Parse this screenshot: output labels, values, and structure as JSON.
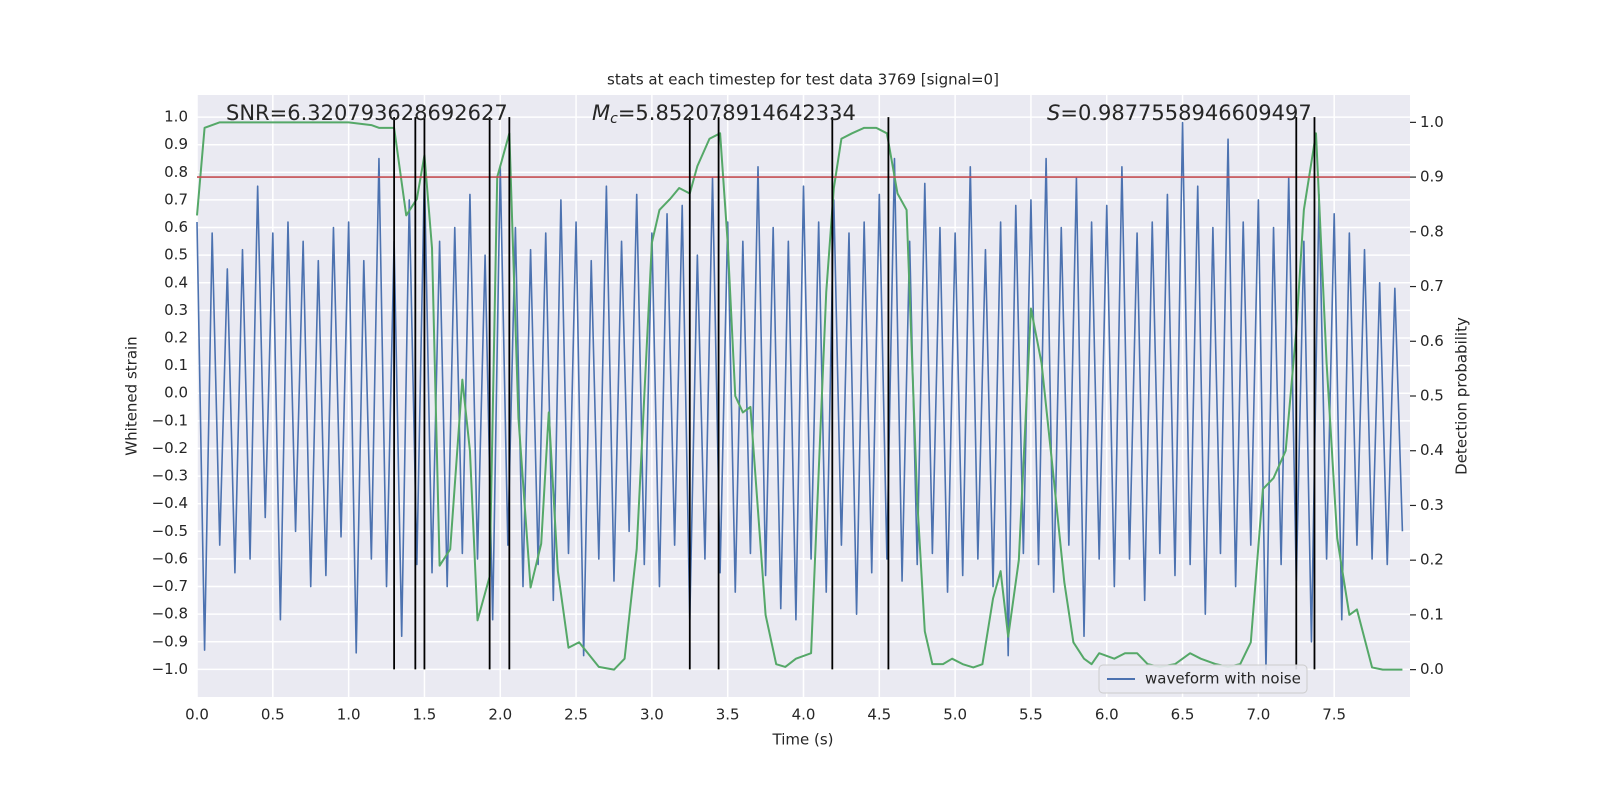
{
  "chart_data": {
    "type": "line",
    "title": "stats at each timestep for test data 3769 [signal=0]",
    "xlabel": "Time (s)",
    "ylabel": "Whitened strain",
    "y2label": "Detection probability",
    "annotations": [
      {
        "text": "SNR=6.320793628692627"
      },
      {
        "symbol": "M",
        "subscript": "c",
        "text": "=5.852078914642334"
      },
      {
        "symbol": "S",
        "text": "=0.9877558946609497"
      }
    ],
    "xlim": [
      0,
      8.0
    ],
    "ylim": [
      -1.1,
      1.08
    ],
    "y2lim": [
      -0.05,
      1.05
    ],
    "xticks": [
      {
        "value": 0,
        "label": "0.0"
      },
      0.5,
      {
        "value": 1,
        "label": "1.0"
      },
      1.5,
      {
        "value": 2,
        "label": "2.0"
      },
      2.5,
      {
        "value": 3,
        "label": "3.0"
      },
      3.5,
      {
        "value": 4,
        "label": "4.0"
      },
      4.5,
      {
        "value": 5,
        "label": "5.0"
      },
      5.5,
      {
        "value": 6,
        "label": "6.0"
      },
      6.5,
      {
        "value": 7,
        "label": "7.0"
      },
      7.5
    ],
    "yticks": [
      {
        "value": -1,
        "label": "−1.0"
      },
      {
        "value": -0.9,
        "label": "−0.9"
      },
      {
        "value": -0.8,
        "label": "−0.8"
      },
      {
        "value": -0.7,
        "label": "−0.7"
      },
      {
        "value": -0.6,
        "label": "−0.6"
      },
      {
        "value": -0.5,
        "label": "−0.5"
      },
      {
        "value": -0.4,
        "label": "−0.4"
      },
      {
        "value": -0.3,
        "label": "−0.3"
      },
      {
        "value": -0.2,
        "label": "−0.2"
      },
      {
        "value": -0.1,
        "label": "−0.1"
      },
      {
        "value": 0,
        "label": "0.0"
      },
      0.1,
      0.2,
      0.3,
      0.4,
      0.5,
      0.6,
      0.7,
      0.8,
      0.9,
      {
        "value": 1,
        "label": "1.0"
      }
    ],
    "y2ticks": [
      {
        "value": 0,
        "label": "0.0"
      },
      0.1,
      0.2,
      0.3,
      0.4,
      0.5,
      0.6,
      0.7,
      0.8,
      0.9,
      {
        "value": 1,
        "label": "1.0"
      }
    ],
    "grid": true,
    "legend": "lower right",
    "series": [
      {
        "name": "waveform with noise",
        "color": "#4c72b0",
        "x": [
          0,
          0.05,
          0.1,
          0.15,
          0.2,
          0.25,
          0.3,
          0.35,
          0.4,
          0.45,
          0.5,
          0.55,
          0.6,
          0.65,
          0.7,
          0.75,
          0.8,
          0.85,
          0.9,
          0.95,
          1,
          1.05,
          1.1,
          1.15,
          1.2,
          1.25,
          1.3,
          1.35,
          1.4,
          1.45,
          1.5,
          1.55,
          1.6,
          1.65,
          1.7,
          1.75,
          1.8,
          1.85,
          1.9,
          1.95,
          2,
          2.05,
          2.1,
          2.15,
          2.2,
          2.25,
          2.3,
          2.35,
          2.4,
          2.45,
          2.5,
          2.55,
          2.6,
          2.65,
          2.7,
          2.75,
          2.8,
          2.85,
          2.9,
          2.95,
          3,
          3.05,
          3.1,
          3.15,
          3.2,
          3.25,
          3.3,
          3.35,
          3.4,
          3.45,
          3.5,
          3.55,
          3.6,
          3.65,
          3.7,
          3.75,
          3.8,
          3.85,
          3.9,
          3.95,
          4,
          4.05,
          4.1,
          4.15,
          4.2,
          4.25,
          4.3,
          4.35,
          4.4,
          4.45,
          4.5,
          4.55,
          4.6,
          4.65,
          4.7,
          4.75,
          4.8,
          4.85,
          4.9,
          4.95,
          5,
          5.05,
          5.1,
          5.15,
          5.2,
          5.25,
          5.3,
          5.35,
          5.4,
          5.45,
          5.5,
          5.55,
          5.6,
          5.65,
          5.7,
          5.75,
          5.8,
          5.85,
          5.9,
          5.95,
          6,
          6.05,
          6.1,
          6.15,
          6.2,
          6.25,
          6.3,
          6.35,
          6.4,
          6.45,
          6.5,
          6.55,
          6.6,
          6.65,
          6.7,
          6.75,
          6.8,
          6.85,
          6.9,
          6.95,
          7,
          7.05,
          7.1,
          7.15,
          7.2,
          7.25,
          7.3,
          7.35,
          7.4,
          7.45,
          7.5,
          7.55,
          7.6,
          7.65,
          7.7,
          7.75,
          7.8,
          7.85,
          7.9,
          7.95
        ],
        "values": [
          0.62,
          -0.93,
          0.58,
          -0.55,
          0.45,
          -0.65,
          0.52,
          -0.6,
          0.75,
          -0.45,
          0.58,
          -0.82,
          0.62,
          -0.5,
          0.55,
          -0.7,
          0.48,
          -0.66,
          0.6,
          -0.52,
          0.62,
          -0.94,
          0.48,
          -0.6,
          0.85,
          -0.7,
          0.55,
          -0.88,
          0.7,
          -0.62,
          0.8,
          -0.65,
          0.55,
          -0.7,
          0.6,
          -0.58,
          0.72,
          -0.6,
          0.5,
          -0.82,
          0.82,
          -0.55,
          0.6,
          -0.7,
          0.52,
          -0.62,
          0.58,
          -0.75,
          0.7,
          -0.58,
          0.62,
          -0.95,
          0.48,
          -0.6,
          0.75,
          -0.68,
          0.55,
          -0.5,
          0.72,
          -0.62,
          0.58,
          -0.7,
          0.65,
          -0.55,
          0.68,
          -0.82,
          0.5,
          -0.6,
          0.78,
          -0.65,
          0.62,
          -0.72,
          0.55,
          -0.58,
          0.82,
          -0.66,
          0.6,
          -0.78,
          0.55,
          -0.82,
          0.75,
          -0.6,
          0.62,
          -0.72,
          0.7,
          -0.55,
          0.58,
          -0.8,
          0.62,
          -0.65,
          0.72,
          -0.6,
          0.85,
          -0.68,
          0.55,
          -0.62,
          0.76,
          -0.58,
          0.6,
          -0.72,
          0.58,
          -0.66,
          0.82,
          -0.6,
          0.52,
          -0.7,
          0.62,
          -0.95,
          0.68,
          -0.58,
          0.7,
          -0.62,
          0.85,
          -0.72,
          0.6,
          -0.55,
          0.78,
          -0.88,
          0.62,
          -0.6,
          0.68,
          -0.7,
          0.82,
          -0.6,
          0.58,
          -0.75,
          0.62,
          -0.58,
          0.72,
          -0.66,
          0.98,
          -0.62,
          0.75,
          -0.8,
          0.6,
          -0.58,
          0.92,
          -0.7,
          0.62,
          -0.55,
          0.7,
          -1.0,
          0.6,
          -0.62,
          0.78,
          -0.68,
          0.55,
          -0.9,
          0.72,
          -0.6,
          0.65,
          -0.82,
          0.58,
          -0.55,
          0.52,
          -0.6,
          0.4,
          -0.62,
          0.38,
          -0.5
        ]
      },
      {
        "color": "#55a868",
        "axis": "y2",
        "x": [
          0,
          0.05,
          0.15,
          0.5,
          1.0,
          1.15,
          1.2,
          1.3,
          1.38,
          1.45,
          1.5,
          1.55,
          1.6,
          1.67,
          1.75,
          1.8,
          1.85,
          1.93,
          1.98,
          2.06,
          2.12,
          2.2,
          2.27,
          2.32,
          2.38,
          2.45,
          2.52,
          2.65,
          2.75,
          2.82,
          2.9,
          3.0,
          3.05,
          3.12,
          3.18,
          3.25,
          3.3,
          3.38,
          3.45,
          3.5,
          3.55,
          3.6,
          3.65,
          3.75,
          3.82,
          3.88,
          3.95,
          4.05,
          4.15,
          4.2,
          4.25,
          4.32,
          4.4,
          4.48,
          4.55,
          4.62,
          4.68,
          4.75,
          4.8,
          4.85,
          4.92,
          4.98,
          5.05,
          5.12,
          5.18,
          5.25,
          5.3,
          5.35,
          5.42,
          5.5,
          5.57,
          5.65,
          5.72,
          5.78,
          5.85,
          5.9,
          5.95,
          6.05,
          6.12,
          6.2,
          6.27,
          6.35,
          6.45,
          6.55,
          6.62,
          6.72,
          6.8,
          6.88,
          6.95,
          7.03,
          7.1,
          7.18,
          7.25,
          7.3,
          7.38,
          7.45,
          7.52,
          7.6,
          7.65,
          7.75,
          7.82,
          7.9,
          7.95
        ],
        "values": [
          0.83,
          0.99,
          1.0,
          1.0,
          1.0,
          0.995,
          0.99,
          0.99,
          0.83,
          0.86,
          0.94,
          0.77,
          0.19,
          0.22,
          0.53,
          0.4,
          0.09,
          0.17,
          0.9,
          0.98,
          0.46,
          0.15,
          0.23,
          0.47,
          0.18,
          0.04,
          0.05,
          0.005,
          0.0,
          0.02,
          0.22,
          0.78,
          0.84,
          0.86,
          0.88,
          0.87,
          0.92,
          0.97,
          0.98,
          0.78,
          0.5,
          0.47,
          0.48,
          0.1,
          0.01,
          0.005,
          0.02,
          0.03,
          0.69,
          0.88,
          0.97,
          0.98,
          0.99,
          0.99,
          0.98,
          0.87,
          0.84,
          0.31,
          0.07,
          0.01,
          0.01,
          0.02,
          0.01,
          0.004,
          0.01,
          0.13,
          0.18,
          0.06,
          0.2,
          0.66,
          0.56,
          0.35,
          0.16,
          0.05,
          0.02,
          0.01,
          0.03,
          0.02,
          0.03,
          0.03,
          0.01,
          0.005,
          0.01,
          0.03,
          0.02,
          0.01,
          0.005,
          0.01,
          0.05,
          0.33,
          0.35,
          0.4,
          0.62,
          0.84,
          0.98,
          0.56,
          0.24,
          0.1,
          0.11,
          0.004,
          0.0,
          0.0,
          0.0
        ]
      }
    ],
    "threshold": {
      "value": 0.9,
      "axis": "y2",
      "color": "#c44e52"
    },
    "vlines": {
      "color": "#000000",
      "x": [
        1.3,
        1.44,
        1.5,
        1.93,
        2.06,
        3.25,
        3.44,
        4.19,
        4.56,
        7.25,
        7.37
      ],
      "range": [
        -1.0,
        1.0
      ]
    }
  }
}
